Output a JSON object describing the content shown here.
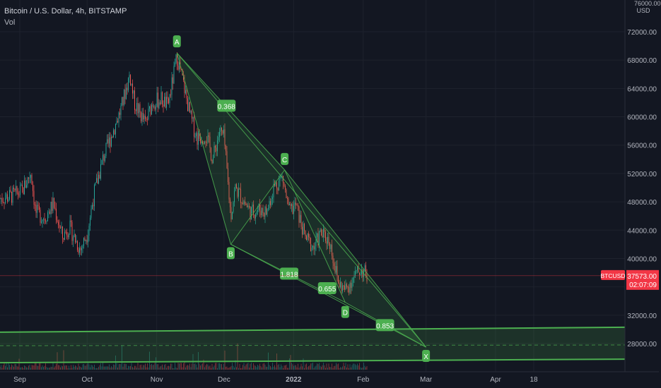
{
  "header": {
    "title": "Bitcoin / U.S. Dollar, 4h, BITSTAMP",
    "indicator": "Vol"
  },
  "price_axis": {
    "currency": "USD",
    "top_label": "76000.00",
    "current_price": "37573.00",
    "countdown": "02:07:09",
    "symbol": "BTCUSD"
  },
  "colors": {
    "background": "#131722",
    "up": "#26a69a",
    "down": "#ef5350",
    "pattern": "#4caf50",
    "price_tag": "#f23645"
  },
  "chart_data": {
    "type": "candlestick",
    "title": "Bitcoin / U.S. Dollar, 4h, BITSTAMP",
    "y_ticks": [
      28000,
      32000,
      36000,
      40000,
      44000,
      48000,
      52000,
      56000,
      60000,
      64000,
      68000,
      72000
    ],
    "y_tick_labels": [
      "28000.00",
      "32000.00",
      "36000.00",
      "40000.00",
      "44000.00",
      "48000.00",
      "52000.00",
      "56000.00",
      "60000.00",
      "64000.00",
      "68000.00",
      "72000.00"
    ],
    "ylim": [
      23500,
      76000
    ],
    "x_ticks": [
      {
        "label": "Sep",
        "date": "2021-09-01"
      },
      {
        "label": "Oct",
        "date": "2021-10-01"
      },
      {
        "label": "Nov",
        "date": "2021-11-01"
      },
      {
        "label": "Dec",
        "date": "2021-12-01"
      },
      {
        "label": "2022",
        "date": "2022-01-01"
      },
      {
        "label": "Feb",
        "date": "2022-02-01"
      },
      {
        "label": "Mar",
        "date": "2022-03-01"
      },
      {
        "label": "Apr",
        "date": "2022-04-01"
      },
      {
        "label": "18",
        "date": "2022-04-18"
      }
    ],
    "price_series": [
      {
        "date": "2021-08-24",
        "price": 48500
      },
      {
        "date": "2021-08-28",
        "price": 48800
      },
      {
        "date": "2021-09-02",
        "price": 49500
      },
      {
        "date": "2021-09-06",
        "price": 52200
      },
      {
        "date": "2021-09-08",
        "price": 46500
      },
      {
        "date": "2021-09-12",
        "price": 45800
      },
      {
        "date": "2021-09-16",
        "price": 47700
      },
      {
        "date": "2021-09-20",
        "price": 43000
      },
      {
        "date": "2021-09-23",
        "price": 44500
      },
      {
        "date": "2021-09-28",
        "price": 41200
      },
      {
        "date": "2021-10-01",
        "price": 43500
      },
      {
        "date": "2021-10-04",
        "price": 49000
      },
      {
        "date": "2021-10-08",
        "price": 54000
      },
      {
        "date": "2021-10-12",
        "price": 57500
      },
      {
        "date": "2021-10-16",
        "price": 61000
      },
      {
        "date": "2021-10-20",
        "price": 66000
      },
      {
        "date": "2021-10-22",
        "price": 62000
      },
      {
        "date": "2021-10-27",
        "price": 59000
      },
      {
        "date": "2021-10-30",
        "price": 62000
      },
      {
        "date": "2021-11-03",
        "price": 62500
      },
      {
        "date": "2021-11-06",
        "price": 61500
      },
      {
        "date": "2021-11-10",
        "price": 68500
      },
      {
        "date": "2021-11-13",
        "price": 64500
      },
      {
        "date": "2021-11-16",
        "price": 60000
      },
      {
        "date": "2021-11-19",
        "price": 57000
      },
      {
        "date": "2021-11-23",
        "price": 57500
      },
      {
        "date": "2021-11-26",
        "price": 54000
      },
      {
        "date": "2021-11-29",
        "price": 58000
      },
      {
        "date": "2021-12-01",
        "price": 57000
      },
      {
        "date": "2021-12-04",
        "price": 46000
      },
      {
        "date": "2021-12-06",
        "price": 50000
      },
      {
        "date": "2021-12-10",
        "price": 48000
      },
      {
        "date": "2021-12-13",
        "price": 46500
      },
      {
        "date": "2021-12-17",
        "price": 47000
      },
      {
        "date": "2021-12-20",
        "price": 46500
      },
      {
        "date": "2021-12-23",
        "price": 50000
      },
      {
        "date": "2021-12-27",
        "price": 51500
      },
      {
        "date": "2021-12-30",
        "price": 46500
      },
      {
        "date": "2022-01-02",
        "price": 47500
      },
      {
        "date": "2022-01-06",
        "price": 43000
      },
      {
        "date": "2022-01-10",
        "price": 41500
      },
      {
        "date": "2022-01-13",
        "price": 43500
      },
      {
        "date": "2022-01-17",
        "price": 42500
      },
      {
        "date": "2022-01-21",
        "price": 36500
      },
      {
        "date": "2022-01-24",
        "price": 35500
      },
      {
        "date": "2022-01-27",
        "price": 37000
      },
      {
        "date": "2022-01-31",
        "price": 38500
      },
      {
        "date": "2022-02-03",
        "price": 37573
      }
    ],
    "pattern": {
      "points": [
        {
          "label": "A",
          "date": "2021-11-10",
          "price": 69000
        },
        {
          "label": "B",
          "date": "2021-12-04",
          "price": 42000
        },
        {
          "label": "C",
          "date": "2021-12-28",
          "price": 52500
        },
        {
          "label": "D",
          "date": "2022-01-24",
          "price": 33800
        },
        {
          "label": "X",
          "date": "2022-03-01",
          "price": 27500
        }
      ],
      "ratios": [
        "0.368",
        "1.818",
        "0.655",
        "0.853"
      ]
    },
    "zone": {
      "low": 25500,
      "high": 29800,
      "mid": 27700
    },
    "current_price": 37573
  }
}
